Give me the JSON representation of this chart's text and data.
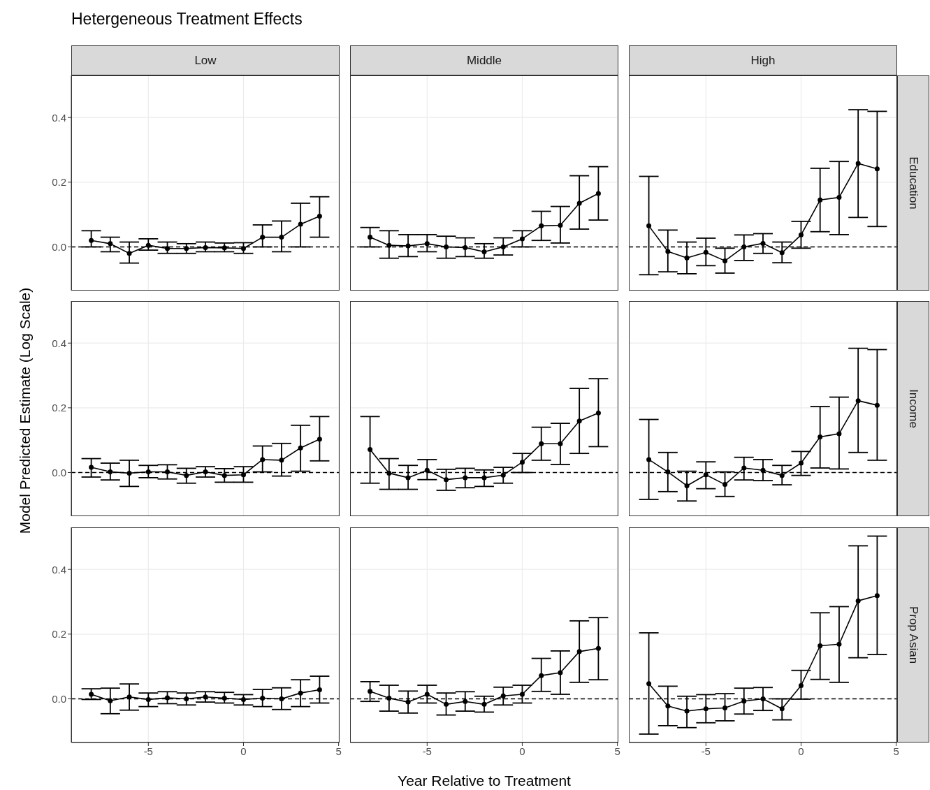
{
  "chart_data": [
    {
      "type": "line",
      "title": "Hetergeneous Treatment Effects",
      "subtitle": "Low",
      "tick_labels": "y",
      "x": [
        -8,
        -7,
        -6,
        -5,
        -4,
        -3,
        -2,
        -1,
        0,
        1,
        2,
        3,
        4
      ],
      "xlim": [
        -9.05,
        5.05
      ],
      "xticks": [
        -5,
        0,
        5
      ],
      "ylim": [
        -0.135,
        0.53
      ],
      "yticks": [
        {
          "value": 0,
          "label": "0.0"
        },
        {
          "value": 0.2,
          "label": "0.2"
        },
        {
          "value": 0.4,
          "label": "0.4"
        }
      ],
      "grid": true,
      "marker": "circle",
      "line_style": "solid",
      "ref_lines": [
        {
          "axis": "y",
          "value": 0,
          "line_style": "dashed",
          "color": "#000000"
        }
      ],
      "series": [
        {
          "color": "#000000",
          "values": [
            0.02,
            0.01,
            -0.02,
            0.005,
            -0.005,
            -0.005,
            -0.002,
            -0.003,
            -0.005,
            0.03,
            0.03,
            0.07,
            0.095
          ],
          "errors": [
            [
              0,
              0.05
            ],
            [
              -0.015,
              0.03
            ],
            [
              -0.05,
              0.015
            ],
            [
              -0.01,
              0.025
            ],
            [
              -0.02,
              0.015
            ],
            [
              -0.02,
              0.01
            ],
            [
              -0.015,
              0.015
            ],
            [
              -0.015,
              0.012
            ],
            [
              -0.02,
              0.013
            ],
            [
              0,
              0.068
            ],
            [
              -0.015,
              0.08
            ],
            [
              0,
              0.135
            ],
            [
              0.03,
              0.155
            ]
          ]
        }
      ]
    },
    {
      "type": "line",
      "subtitle": "Middle",
      "tick_labels": false,
      "x": [
        -8,
        -7,
        -6,
        -5,
        -4,
        -3,
        -2,
        -1,
        0,
        1,
        2,
        3,
        4
      ],
      "xlim": [
        -9.05,
        5.05
      ],
      "xticks": [
        -5,
        0,
        5
      ],
      "ylim": [
        -0.135,
        0.53
      ],
      "yticks": [
        0,
        0.2,
        0.4
      ],
      "grid": true,
      "marker": "circle",
      "line_style": "solid",
      "ref_lines": [
        {
          "axis": "y",
          "value": 0,
          "line_style": "dashed",
          "color": "#000000"
        }
      ],
      "series": [
        {
          "color": "#000000",
          "values": [
            0.03,
            0.005,
            0.003,
            0.01,
            0,
            -0.002,
            -0.015,
            0,
            0.025,
            0.065,
            0.067,
            0.135,
            0.165
          ],
          "errors": [
            [
              0,
              0.06
            ],
            [
              -0.035,
              0.05
            ],
            [
              -0.03,
              0.038
            ],
            [
              -0.015,
              0.038
            ],
            [
              -0.035,
              0.033
            ],
            [
              -0.03,
              0.028
            ],
            [
              -0.035,
              0.01
            ],
            [
              -0.025,
              0.028
            ],
            [
              0,
              0.05
            ],
            [
              0.02,
              0.11
            ],
            [
              0.012,
              0.125
            ],
            [
              0.055,
              0.22
            ],
            [
              0.083,
              0.248
            ]
          ]
        }
      ]
    },
    {
      "type": "line",
      "subtitle": "High",
      "y2label": "Education",
      "tick_labels": false,
      "x": [
        -8,
        -7,
        -6,
        -5,
        -4,
        -3,
        -2,
        -1,
        0,
        1,
        2,
        3,
        4
      ],
      "xlim": [
        -9.05,
        5.05
      ],
      "xticks": [
        -5,
        0,
        5
      ],
      "ylim": [
        -0.135,
        0.53
      ],
      "yticks": [
        0,
        0.2,
        0.4
      ],
      "grid": true,
      "marker": "circle",
      "line_style": "solid",
      "ref_lines": [
        {
          "axis": "y",
          "value": 0,
          "line_style": "dashed",
          "color": "#000000"
        }
      ],
      "series": [
        {
          "color": "#000000",
          "values": [
            0.065,
            -0.014,
            -0.034,
            -0.017,
            -0.043,
            0,
            0.011,
            -0.018,
            0.037,
            0.145,
            0.153,
            0.258,
            0.241
          ],
          "errors": [
            [
              -0.086,
              0.218
            ],
            [
              -0.077,
              0.052
            ],
            [
              -0.083,
              0.015
            ],
            [
              -0.058,
              0.027
            ],
            [
              -0.081,
              -0.004
            ],
            [
              -0.042,
              0.037
            ],
            [
              -0.02,
              0.041
            ],
            [
              -0.049,
              0.015
            ],
            [
              -0.004,
              0.079
            ],
            [
              0.047,
              0.243
            ],
            [
              0.038,
              0.264
            ],
            [
              0.091,
              0.424
            ],
            [
              0.063,
              0.419
            ]
          ]
        }
      ]
    },
    {
      "type": "line",
      "ylabel": "Model Predicted Estimate (Log Scale)",
      "tick_labels": "y",
      "x": [
        -8,
        -7,
        -6,
        -5,
        -4,
        -3,
        -2,
        -1,
        0,
        1,
        2,
        3,
        4
      ],
      "xlim": [
        -9.05,
        5.05
      ],
      "xticks": [
        -5,
        0,
        5
      ],
      "ylim": [
        -0.135,
        0.53
      ],
      "yticks": [
        {
          "value": 0,
          "label": "0.0"
        },
        {
          "value": 0.2,
          "label": "0.2"
        },
        {
          "value": 0.4,
          "label": "0.4"
        }
      ],
      "grid": true,
      "marker": "circle",
      "line_style": "solid",
      "ref_lines": [
        {
          "axis": "y",
          "value": 0,
          "line_style": "dashed",
          "color": "#000000"
        }
      ],
      "series": [
        {
          "color": "#000000",
          "values": [
            0.016,
            0.002,
            -0.002,
            0.002,
            0.002,
            -0.009,
            0.002,
            -0.009,
            -0.007,
            0.04,
            0.038,
            0.076,
            0.103
          ],
          "errors": [
            [
              -0.014,
              0.043
            ],
            [
              -0.023,
              0.029
            ],
            [
              -0.043,
              0.038
            ],
            [
              -0.016,
              0.022
            ],
            [
              -0.02,
              0.024
            ],
            [
              -0.033,
              0.013
            ],
            [
              -0.014,
              0.018
            ],
            [
              -0.03,
              0.012
            ],
            [
              -0.03,
              0.018
            ],
            [
              0.002,
              0.082
            ],
            [
              -0.011,
              0.09
            ],
            [
              0.004,
              0.146
            ],
            [
              0.036,
              0.173
            ]
          ]
        }
      ]
    },
    {
      "type": "line",
      "tick_labels": false,
      "x": [
        -8,
        -7,
        -6,
        -5,
        -4,
        -3,
        -2,
        -1,
        0,
        1,
        2,
        3,
        4
      ],
      "xlim": [
        -9.05,
        5.05
      ],
      "xticks": [
        -5,
        0,
        5
      ],
      "ylim": [
        -0.135,
        0.53
      ],
      "yticks": [
        0,
        0.2,
        0.4
      ],
      "grid": true,
      "marker": "circle",
      "line_style": "solid",
      "ref_lines": [
        {
          "axis": "y",
          "value": 0,
          "line_style": "dashed",
          "color": "#000000"
        }
      ],
      "series": [
        {
          "color": "#000000",
          "values": [
            0.071,
            -0.002,
            -0.016,
            0.007,
            -0.022,
            -0.016,
            -0.016,
            -0.008,
            0.032,
            0.089,
            0.089,
            0.159,
            0.184
          ],
          "errors": [
            [
              -0.033,
              0.173
            ],
            [
              -0.052,
              0.043
            ],
            [
              -0.052,
              0.022
            ],
            [
              -0.022,
              0.04
            ],
            [
              -0.055,
              0.01
            ],
            [
              -0.047,
              0.013
            ],
            [
              -0.043,
              0.008
            ],
            [
              -0.033,
              0.016
            ],
            [
              0,
              0.059
            ],
            [
              0.038,
              0.14
            ],
            [
              0.025,
              0.152
            ],
            [
              0.059,
              0.26
            ],
            [
              0.08,
              0.29
            ]
          ]
        }
      ]
    },
    {
      "type": "line",
      "y2label": "Income",
      "tick_labels": false,
      "x": [
        -8,
        -7,
        -6,
        -5,
        -4,
        -3,
        -2,
        -1,
        0,
        1,
        2,
        3,
        4
      ],
      "xlim": [
        -9.05,
        5.05
      ],
      "xticks": [
        -5,
        0,
        5
      ],
      "ylim": [
        -0.135,
        0.53
      ],
      "yticks": [
        0,
        0.2,
        0.4
      ],
      "grid": true,
      "marker": "circle",
      "line_style": "solid",
      "ref_lines": [
        {
          "axis": "y",
          "value": 0,
          "line_style": "dashed",
          "color": "#000000"
        }
      ],
      "series": [
        {
          "color": "#000000",
          "values": [
            0.04,
            0.002,
            -0.041,
            -0.007,
            -0.037,
            0.014,
            0.007,
            -0.009,
            0.029,
            0.11,
            0.12,
            0.222,
            0.208
          ],
          "errors": [
            [
              -0.083,
              0.164
            ],
            [
              -0.059,
              0.062
            ],
            [
              -0.088,
              0.004
            ],
            [
              -0.05,
              0.033
            ],
            [
              -0.074,
              0.002
            ],
            [
              -0.023,
              0.047
            ],
            [
              -0.025,
              0.04
            ],
            [
              -0.038,
              0.022
            ],
            [
              -0.009,
              0.065
            ],
            [
              0.014,
              0.204
            ],
            [
              0.011,
              0.233
            ],
            [
              0.062,
              0.384
            ],
            [
              0.038,
              0.38
            ]
          ]
        }
      ]
    },
    {
      "type": "line",
      "x": [
        -8,
        -7,
        -6,
        -5,
        -4,
        -3,
        -2,
        -1,
        0,
        1,
        2,
        3,
        4
      ],
      "xlim": [
        -9.05,
        5.05
      ],
      "xticks": [
        -5,
        0,
        5
      ],
      "ylim": [
        -0.135,
        0.53
      ],
      "yticks": [
        {
          "value": 0,
          "label": "0.0"
        },
        {
          "value": 0.2,
          "label": "0.2"
        },
        {
          "value": 0.4,
          "label": "0.4"
        }
      ],
      "grid": true,
      "marker": "circle",
      "line_style": "solid",
      "ref_lines": [
        {
          "axis": "y",
          "value": 0,
          "line_style": "dashed",
          "color": "#000000"
        }
      ],
      "series": [
        {
          "color": "#000000",
          "values": [
            0.014,
            -0.006,
            0.006,
            -0.002,
            0.003,
            0,
            0.006,
            0.002,
            -0.002,
            0.002,
            0,
            0.018,
            0.028
          ],
          "errors": [
            [
              -0.002,
              0.031
            ],
            [
              -0.046,
              0.033
            ],
            [
              -0.035,
              0.046
            ],
            [
              -0.024,
              0.018
            ],
            [
              -0.015,
              0.022
            ],
            [
              -0.019,
              0.018
            ],
            [
              -0.01,
              0.022
            ],
            [
              -0.013,
              0.02
            ],
            [
              -0.019,
              0.013
            ],
            [
              -0.024,
              0.029
            ],
            [
              -0.033,
              0.034
            ],
            [
              -0.024,
              0.059
            ],
            [
              -0.013,
              0.07
            ]
          ]
        }
      ]
    },
    {
      "type": "line",
      "xlabel": "Year Relative to Treatment",
      "tick_labels": "x",
      "x": [
        -8,
        -7,
        -6,
        -5,
        -4,
        -3,
        -2,
        -1,
        0,
        1,
        2,
        3,
        4
      ],
      "xlim": [
        -9.05,
        5.05
      ],
      "xticks": [
        -5,
        0,
        5
      ],
      "ylim": [
        -0.135,
        0.53
      ],
      "yticks": [
        0,
        0.2,
        0.4
      ],
      "grid": true,
      "marker": "circle",
      "line_style": "solid",
      "ref_lines": [
        {
          "axis": "y",
          "value": 0,
          "line_style": "dashed",
          "color": "#000000"
        }
      ],
      "series": [
        {
          "color": "#000000",
          "values": [
            0.023,
            0.002,
            -0.01,
            0.014,
            -0.017,
            -0.008,
            -0.017,
            0.009,
            0.014,
            0.072,
            0.081,
            0.146,
            0.156
          ],
          "errors": [
            [
              -0.008,
              0.053
            ],
            [
              -0.038,
              0.042
            ],
            [
              -0.044,
              0.024
            ],
            [
              -0.013,
              0.042
            ],
            [
              -0.05,
              0.018
            ],
            [
              -0.038,
              0.022
            ],
            [
              -0.041,
              0.008
            ],
            [
              -0.019,
              0.036
            ],
            [
              -0.013,
              0.042
            ],
            [
              0.023,
              0.125
            ],
            [
              0.014,
              0.148
            ],
            [
              0.051,
              0.241
            ],
            [
              0.059,
              0.251
            ]
          ]
        }
      ]
    },
    {
      "type": "line",
      "y2label": "Prop Asian",
      "tick_labels": "x",
      "x": [
        -8,
        -7,
        -6,
        -5,
        -4,
        -3,
        -2,
        -1,
        0,
        1,
        2,
        3,
        4
      ],
      "xlim": [
        -9.05,
        5.05
      ],
      "xticks": [
        -5,
        0,
        5
      ],
      "ylim": [
        -0.135,
        0.53
      ],
      "yticks": [
        0,
        0.2,
        0.4
      ],
      "grid": true,
      "marker": "circle",
      "line_style": "solid",
      "ref_lines": [
        {
          "axis": "y",
          "value": 0,
          "line_style": "dashed",
          "color": "#000000"
        }
      ],
      "series": [
        {
          "color": "#000000",
          "values": [
            0.047,
            -0.022,
            -0.038,
            -0.031,
            -0.028,
            -0.007,
            0,
            -0.031,
            0.041,
            0.164,
            0.169,
            0.303,
            0.319
          ],
          "errors": [
            [
              -0.109,
              0.204
            ],
            [
              -0.083,
              0.039
            ],
            [
              -0.089,
              0.008
            ],
            [
              -0.074,
              0.013
            ],
            [
              -0.068,
              0.016
            ],
            [
              -0.047,
              0.033
            ],
            [
              -0.036,
              0.035
            ],
            [
              -0.065,
              0
            ],
            [
              -0.001,
              0.088
            ],
            [
              0.06,
              0.266
            ],
            [
              0.051,
              0.285
            ],
            [
              0.127,
              0.473
            ],
            [
              0.137,
              0.503
            ]
          ]
        }
      ]
    }
  ]
}
